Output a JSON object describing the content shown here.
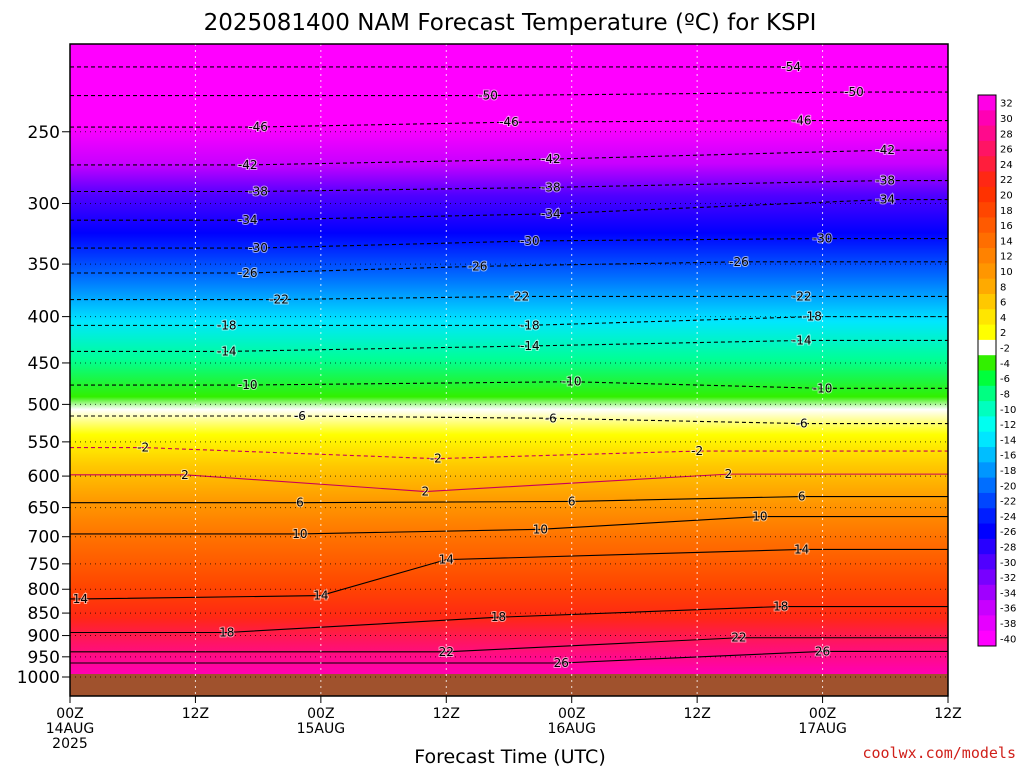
{
  "chart_data": {
    "type": "heatmap",
    "title": "2025081400 NAM Forecast Temperature (ºC) for KSPI",
    "xlabel": "Forecast Time (UTC)",
    "ylabel": "",
    "credit": "coolwx.com/models",
    "y_scale": "log",
    "y_range": [
      1000,
      200
    ],
    "y_ticks": [
      250,
      300,
      350,
      400,
      450,
      500,
      550,
      600,
      650,
      700,
      750,
      800,
      850,
      900,
      950,
      1000
    ],
    "x_range_hours": [
      0,
      84
    ],
    "x_ticks": [
      {
        "hour": 0,
        "lines": [
          "00Z",
          "14AUG",
          "2025"
        ]
      },
      {
        "hour": 12,
        "lines": [
          "12Z"
        ]
      },
      {
        "hour": 24,
        "lines": [
          "00Z",
          "15AUG"
        ]
      },
      {
        "hour": 36,
        "lines": [
          "12Z"
        ]
      },
      {
        "hour": 48,
        "lines": [
          "00Z",
          "16AUG"
        ]
      },
      {
        "hour": 60,
        "lines": [
          "12Z"
        ]
      },
      {
        "hour": 72,
        "lines": [
          "00Z",
          "17AUG"
        ]
      },
      {
        "hour": 84,
        "lines": [
          "12Z"
        ]
      }
    ],
    "grid": true,
    "colorbar": {
      "position": "right",
      "levels": [
        32,
        30,
        28,
        26,
        24,
        22,
        20,
        18,
        16,
        14,
        12,
        10,
        8,
        6,
        4,
        2,
        -2,
        -4,
        -6,
        -8,
        -10,
        -12,
        -14,
        -16,
        -18,
        -20,
        -22,
        -24,
        -26,
        -28,
        -30,
        -32,
        -34,
        -36,
        -38,
        -40
      ],
      "colors": [
        "#ff00e6",
        "#ff00b4",
        "#ff0a8c",
        "#ff1464",
        "#ff1e3c",
        "#ff2814",
        "#ff3200",
        "#ff4600",
        "#ff5a00",
        "#ff6e00",
        "#ff8200",
        "#ff9600",
        "#ffaa00",
        "#ffc800",
        "#ffe600",
        "#ffff00",
        "#ffffff",
        "#32f000",
        "#00ff3c",
        "#00ff82",
        "#00ffbe",
        "#00fff0",
        "#00e6ff",
        "#00beff",
        "#0096ff",
        "#006eff",
        "#0046ff",
        "#001eff",
        "#0000ff",
        "#2800ff",
        "#5000ff",
        "#7800ff",
        "#a000ff",
        "#c800ff",
        "#e600ff",
        "#ff00ff"
      ]
    },
    "contour_labels": [
      {
        "value": -54,
        "hour": 69,
        "p": 212
      },
      {
        "value": -50,
        "hour": 40,
        "p": 228
      },
      {
        "value": -50,
        "hour": 75,
        "p": 226
      },
      {
        "value": -46,
        "hour": 18,
        "p": 247
      },
      {
        "value": -46,
        "hour": 42,
        "p": 244
      },
      {
        "value": -46,
        "hour": 70,
        "p": 243
      },
      {
        "value": -42,
        "hour": 17,
        "p": 272
      },
      {
        "value": -42,
        "hour": 46,
        "p": 268
      },
      {
        "value": -42,
        "hour": 78,
        "p": 262
      },
      {
        "value": -38,
        "hour": 18,
        "p": 291
      },
      {
        "value": -38,
        "hour": 46,
        "p": 288
      },
      {
        "value": -38,
        "hour": 78,
        "p": 283
      },
      {
        "value": -34,
        "hour": 17,
        "p": 313
      },
      {
        "value": -34,
        "hour": 46,
        "p": 308
      },
      {
        "value": -34,
        "hour": 78,
        "p": 297
      },
      {
        "value": -30,
        "hour": 18,
        "p": 336
      },
      {
        "value": -30,
        "hour": 44,
        "p": 330
      },
      {
        "value": -30,
        "hour": 72,
        "p": 328
      },
      {
        "value": -26,
        "hour": 17,
        "p": 358
      },
      {
        "value": -26,
        "hour": 39,
        "p": 352
      },
      {
        "value": -26,
        "hour": 64,
        "p": 348
      },
      {
        "value": -22,
        "hour": 20,
        "p": 383
      },
      {
        "value": -22,
        "hour": 43,
        "p": 380
      },
      {
        "value": -22,
        "hour": 70,
        "p": 380
      },
      {
        "value": -18,
        "hour": 15,
        "p": 409
      },
      {
        "value": -18,
        "hour": 44,
        "p": 409
      },
      {
        "value": -18,
        "hour": 71,
        "p": 400
      },
      {
        "value": -14,
        "hour": 15,
        "p": 437
      },
      {
        "value": -14,
        "hour": 44,
        "p": 431
      },
      {
        "value": -14,
        "hour": 70,
        "p": 425
      },
      {
        "value": -10,
        "hour": 17,
        "p": 476
      },
      {
        "value": -10,
        "hour": 48,
        "p": 472
      },
      {
        "value": -10,
        "hour": 72,
        "p": 480
      },
      {
        "value": -6,
        "hour": 22,
        "p": 515
      },
      {
        "value": -6,
        "hour": 46,
        "p": 518
      },
      {
        "value": -6,
        "hour": 70,
        "p": 525
      },
      {
        "value": -2,
        "hour": 7,
        "p": 558
      },
      {
        "value": -2,
        "hour": 35,
        "p": 574
      },
      {
        "value": -2,
        "hour": 60,
        "p": 563
      },
      {
        "value": 2,
        "hour": 11,
        "p": 598
      },
      {
        "value": 2,
        "hour": 34,
        "p": 624
      },
      {
        "value": 2,
        "hour": 63,
        "p": 597
      },
      {
        "value": 6,
        "hour": 22,
        "p": 642
      },
      {
        "value": 6,
        "hour": 48,
        "p": 640
      },
      {
        "value": 6,
        "hour": 70,
        "p": 632
      },
      {
        "value": 10,
        "hour": 22,
        "p": 695
      },
      {
        "value": 10,
        "hour": 45,
        "p": 687
      },
      {
        "value": 10,
        "hour": 66,
        "p": 665
      },
      {
        "value": 14,
        "hour": 1,
        "p": 820
      },
      {
        "value": 14,
        "hour": 24,
        "p": 813
      },
      {
        "value": 14,
        "hour": 36,
        "p": 742
      },
      {
        "value": 14,
        "hour": 70,
        "p": 723
      },
      {
        "value": 18,
        "hour": 15,
        "p": 893
      },
      {
        "value": 18,
        "hour": 41,
        "p": 859
      },
      {
        "value": 18,
        "hour": 68,
        "p": 836
      },
      {
        "value": 22,
        "hour": 36,
        "p": 938
      },
      {
        "value": 22,
        "hour": 64,
        "p": 905
      },
      {
        "value": 26,
        "hour": 47,
        "p": 965
      },
      {
        "value": 26,
        "hour": 72,
        "p": 937
      }
    ]
  }
}
